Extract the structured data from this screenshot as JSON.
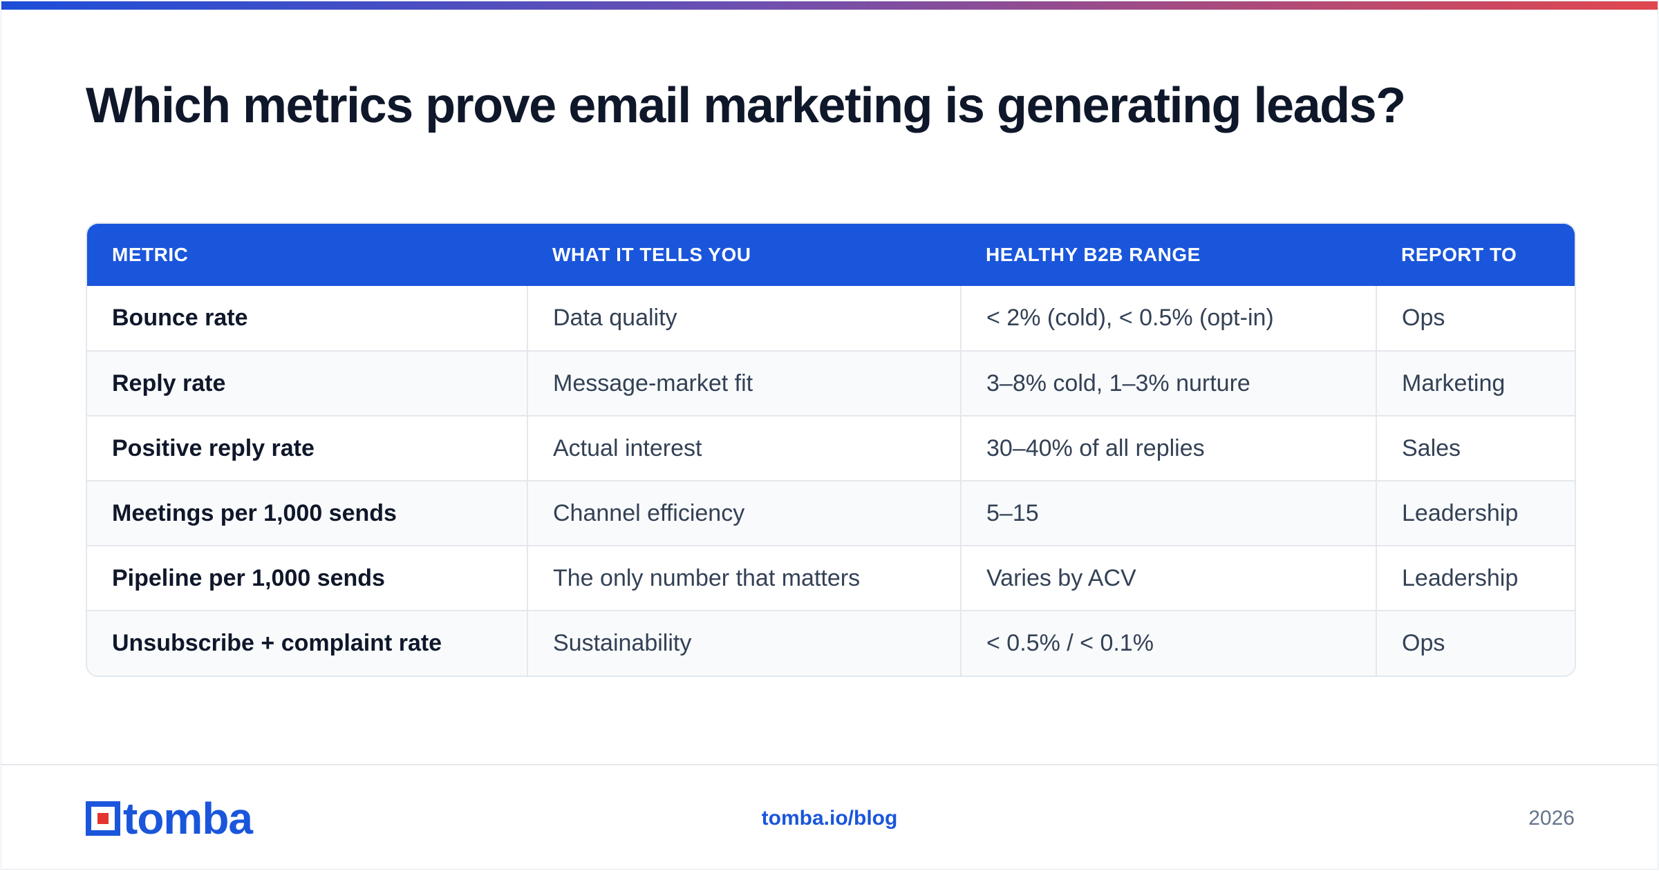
{
  "title": "Which metrics prove email marketing is generating leads?",
  "table": {
    "headers": [
      "METRIC",
      "WHAT IT TELLS YOU",
      "HEALTHY B2B RANGE",
      "REPORT TO"
    ],
    "rows": [
      [
        "Bounce rate",
        "Data quality",
        "< 2% (cold), < 0.5% (opt-in)",
        "Ops"
      ],
      [
        "Reply rate",
        "Message-market fit",
        "3–8% cold, 1–3% nurture",
        "Marketing"
      ],
      [
        "Positive reply rate",
        "Actual interest",
        "30–40% of all replies",
        "Sales"
      ],
      [
        "Meetings per 1,000 sends",
        "Channel efficiency",
        "5–15",
        "Leadership"
      ],
      [
        "Pipeline per 1,000 sends",
        "The only number that matters",
        "Varies by ACV",
        "Leadership"
      ],
      [
        "Unsubscribe + complaint rate",
        "Sustainability",
        "< 0.5% / < 0.1%",
        "Ops"
      ]
    ]
  },
  "footer": {
    "logo_text": "tomba",
    "link": "tomba.io/blog",
    "year": "2026"
  },
  "colors": {
    "brand_blue": "#1a56db",
    "logo_red": "#e3342f",
    "accent_gradient_start": "#1d4ed8",
    "accent_gradient_end": "#e0474f"
  }
}
